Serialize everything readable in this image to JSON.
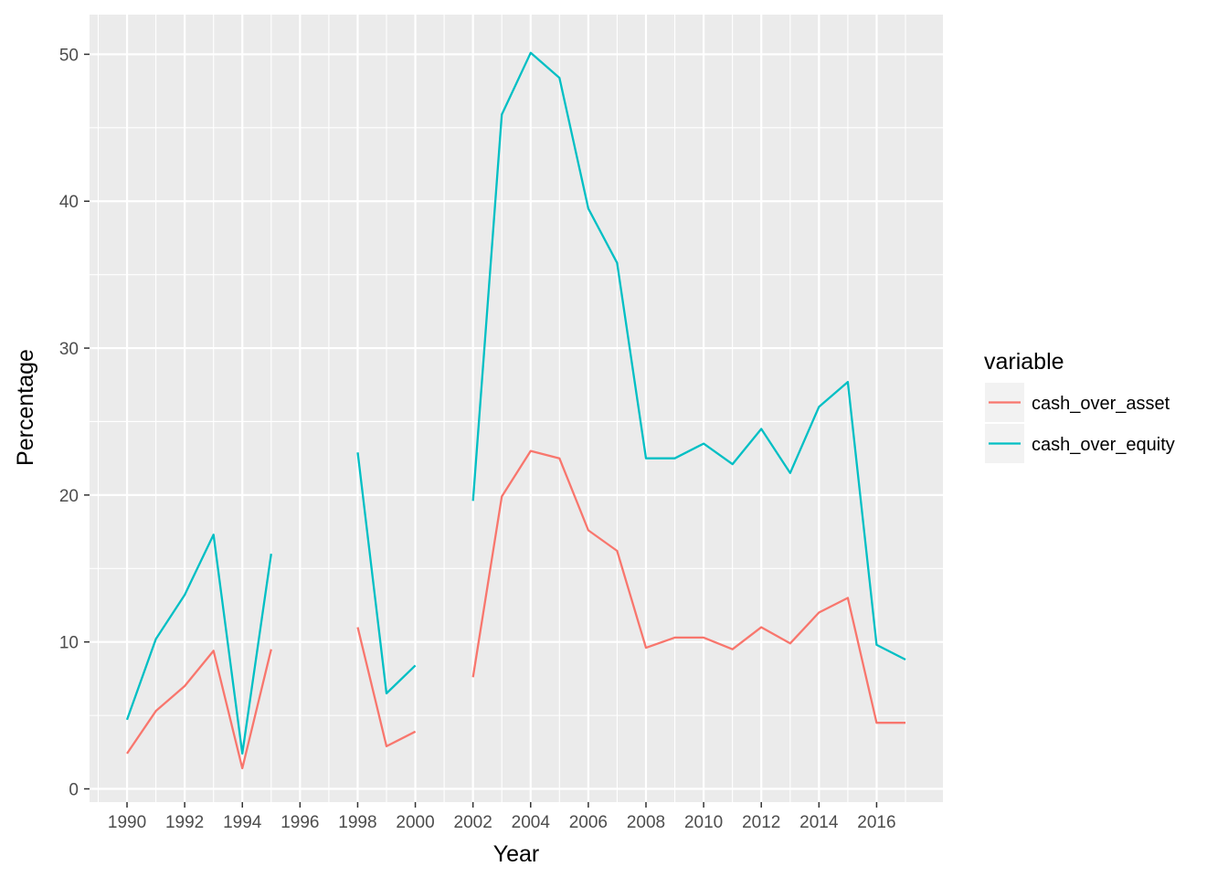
{
  "chart_data": {
    "type": "line",
    "xlabel": "Year",
    "ylabel": "Percentage",
    "x_ticks": [
      1990,
      1992,
      1994,
      1996,
      1998,
      2000,
      2002,
      2004,
      2006,
      2008,
      2010,
      2012,
      2014,
      2016
    ],
    "y_ticks": [
      0,
      10,
      20,
      30,
      40,
      50
    ],
    "xlim": [
      1988.7,
      2018.3
    ],
    "ylim": [
      -0.9,
      52.7
    ],
    "grid": true,
    "legend": {
      "title": "variable",
      "position": "right"
    },
    "x": [
      1990,
      1991,
      1992,
      1993,
      1994,
      1995,
      1996,
      1997,
      1998,
      1999,
      2000,
      2001,
      2002,
      2003,
      2004,
      2005,
      2006,
      2007,
      2008,
      2009,
      2010,
      2011,
      2012,
      2013,
      2014,
      2015,
      2016,
      2017
    ],
    "series": [
      {
        "name": "cash_over_asset",
        "color": "#F8766D",
        "values": [
          2.4,
          5.3,
          7.0,
          9.4,
          1.4,
          9.5,
          null,
          null,
          11.0,
          2.9,
          3.9,
          null,
          7.6,
          19.9,
          23.0,
          22.5,
          17.6,
          16.2,
          9.6,
          10.3,
          10.3,
          9.5,
          11.0,
          9.9,
          12.0,
          13.0,
          4.5,
          4.5
        ]
      },
      {
        "name": "cash_over_equity",
        "color": "#00BFC4",
        "values": [
          4.7,
          10.2,
          13.2,
          17.3,
          2.4,
          16.0,
          null,
          null,
          22.9,
          6.5,
          8.4,
          null,
          19.6,
          45.9,
          50.1,
          48.4,
          39.5,
          35.8,
          22.5,
          22.5,
          23.5,
          22.1,
          24.5,
          21.5,
          26.0,
          27.7,
          9.8,
          8.8
        ]
      }
    ]
  },
  "colors": {
    "panel_background": "#EBEBEB",
    "grid": "#FFFFFF",
    "tick_text": "#4D4D4D"
  }
}
